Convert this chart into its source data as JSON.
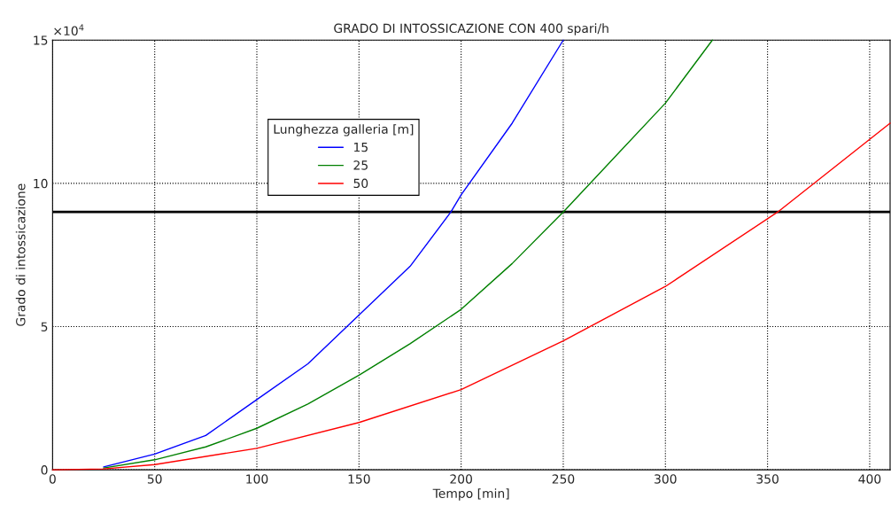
{
  "chart_data": {
    "type": "line",
    "title": "GRADO DI INTOSSICAZIONE CON 400 spari/h",
    "xlabel": "Tempo [min]",
    "ylabel": "Grado di intossicazione",
    "legend_title": "Lunghezza galleria [m]",
    "annotations": [
      "×10$^{4}$"
    ],
    "series": [
      {
        "name": "15",
        "color": "#0000ff",
        "x": [
          25,
          50,
          75,
          100,
          125,
          150,
          175,
          195,
          200,
          225,
          250
        ],
        "values": [
          0.1,
          0.55,
          1.2,
          2.45,
          3.7,
          5.4,
          7.1,
          9.0,
          9.6,
          12.1,
          15
        ]
      },
      {
        "name": "25",
        "color": "#008000",
        "x": [
          25,
          50,
          75,
          100,
          125,
          150,
          175,
          200,
          225,
          250,
          275,
          300,
          323
        ],
        "values": [
          0.06,
          0.35,
          0.8,
          1.45,
          2.3,
          3.3,
          4.4,
          5.6,
          7.2,
          9.0,
          10.9,
          12.8,
          15
        ]
      },
      {
        "name": "50",
        "color": "#ff0000",
        "x": [
          0,
          25,
          50,
          100,
          150,
          200,
          250,
          300,
          355,
          410
        ],
        "values": [
          0,
          0.03,
          0.18,
          0.75,
          1.65,
          2.8,
          4.5,
          6.4,
          9.0,
          12.1
        ]
      }
    ],
    "ref_lines": [
      {
        "axis": "y",
        "value": 9,
        "color": "#000000"
      }
    ],
    "xlim": [
      0,
      410
    ],
    "xticks": [
      0,
      50,
      100,
      150,
      200,
      250,
      300,
      350,
      400
    ],
    "ylim": [
      0,
      15
    ],
    "yticks": [
      0,
      5,
      10,
      15
    ],
    "grid": true,
    "legend": "top left",
    "line_style": "solid"
  }
}
